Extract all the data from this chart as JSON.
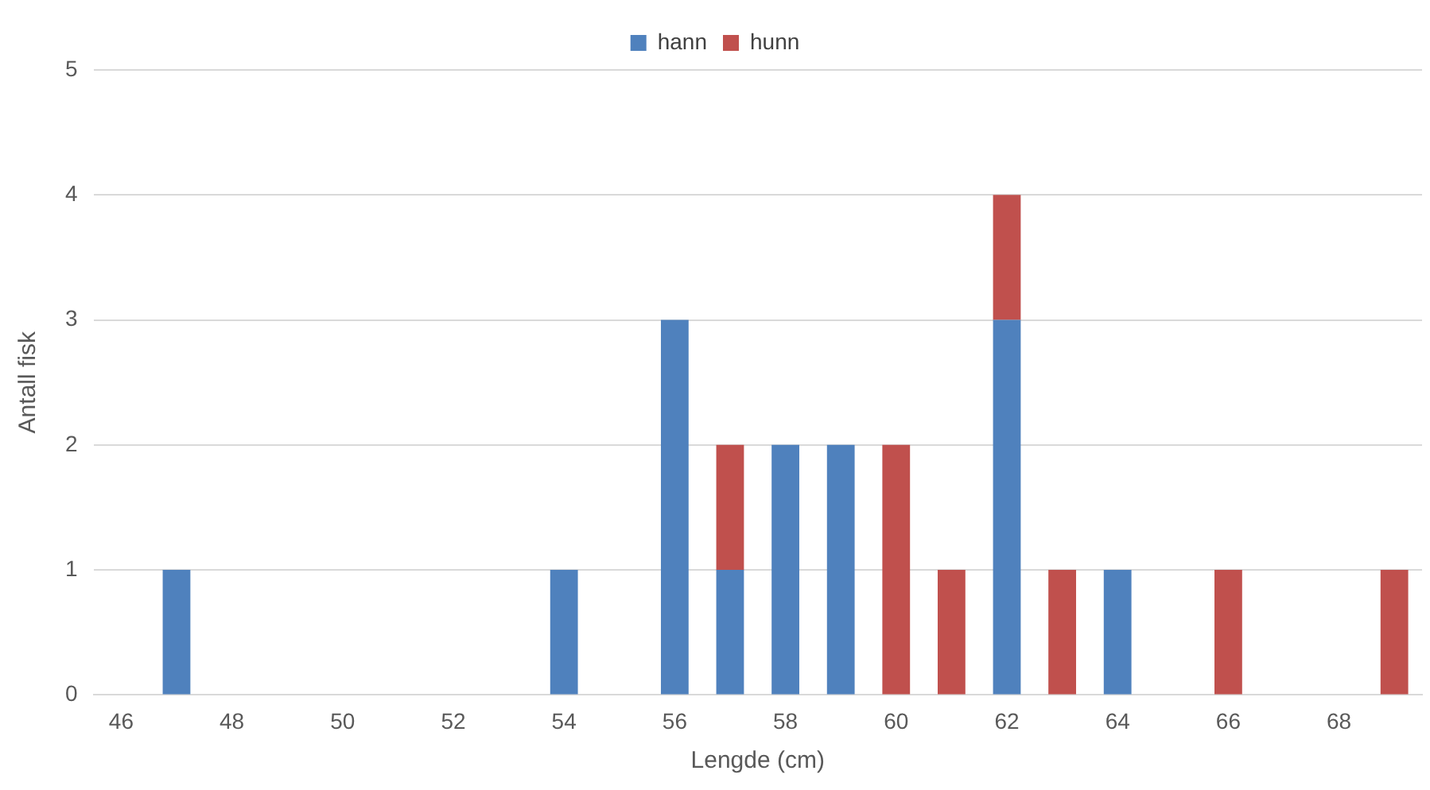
{
  "chart_data": {
    "type": "bar",
    "stacked": true,
    "xlabel": "Lengde (cm)",
    "ylabel": "Antall fisk",
    "categories": [
      "46",
      null,
      "48",
      null,
      "50",
      null,
      "52",
      null,
      "54",
      null,
      "56",
      null,
      "58",
      null,
      "60",
      null,
      "62",
      null,
      "64",
      null,
      "66",
      null,
      "68",
      null
    ],
    "series": [
      {
        "name": "hann",
        "color": "#4f81bd",
        "values": [
          0,
          1,
          0,
          0,
          0,
          0,
          0,
          0,
          1,
          0,
          3,
          1,
          2,
          2,
          0,
          0,
          3,
          0,
          1,
          0,
          0,
          0,
          0,
          0
        ]
      },
      {
        "name": "hunn",
        "color": "#c0504d",
        "values": [
          0,
          0,
          0,
          0,
          0,
          0,
          0,
          0,
          0,
          0,
          0,
          1,
          0,
          0,
          2,
          1,
          1,
          1,
          0,
          0,
          1,
          0,
          0,
          1
        ]
      }
    ],
    "ylim": [
      0,
      5
    ],
    "yticks": [
      0,
      1,
      2,
      3,
      4,
      5
    ],
    "grid": "y",
    "legend": "top"
  }
}
